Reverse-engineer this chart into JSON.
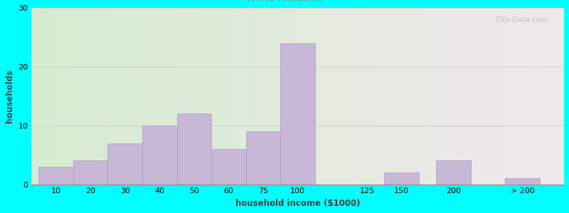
{
  "xlabel": "household income ($1000)",
  "ylabel": "households",
  "background_color": "#00FFFF",
  "bar_color": "#C8B8D8",
  "bar_edge_color": "#A898C0",
  "plot_bg_color_left": "#D6EDD0",
  "plot_bg_color_right": "#F0E8EC",
  "ylim": [
    0,
    30
  ],
  "yticks": [
    0,
    10,
    20,
    30
  ],
  "grid_color": "#CCCCCC",
  "title_fontsize": 12,
  "subtitle_fontsize": 10,
  "subtitle_color": "#889988",
  "axis_label_fontsize": 8.5,
  "tick_fontsize": 8,
  "watermark": "City-Data.com",
  "watermark_color": "#AABBAA",
  "categories": [
    "10",
    "20",
    "30",
    "40",
    "50",
    "60",
    "75",
    "100",
    "125",
    "150",
    "200",
    "> 200"
  ],
  "values": [
    3,
    4,
    7,
    10,
    12,
    6,
    9,
    24,
    0,
    2,
    4,
    1
  ],
  "bar_lefts": [
    0,
    1,
    2,
    3,
    4,
    5,
    6,
    7,
    9,
    10,
    11.5,
    13.5
  ],
  "bar_widths": [
    1,
    1,
    1,
    1,
    1,
    1,
    1,
    1,
    1,
    1,
    1,
    1
  ],
  "xlim": [
    -0.2,
    15.2
  ],
  "tick_offsets": [
    0.5,
    1.5,
    2.5,
    3.5,
    4.5,
    5.5,
    6.5,
    7.5,
    9.5,
    10.5,
    12.0,
    14.0
  ]
}
